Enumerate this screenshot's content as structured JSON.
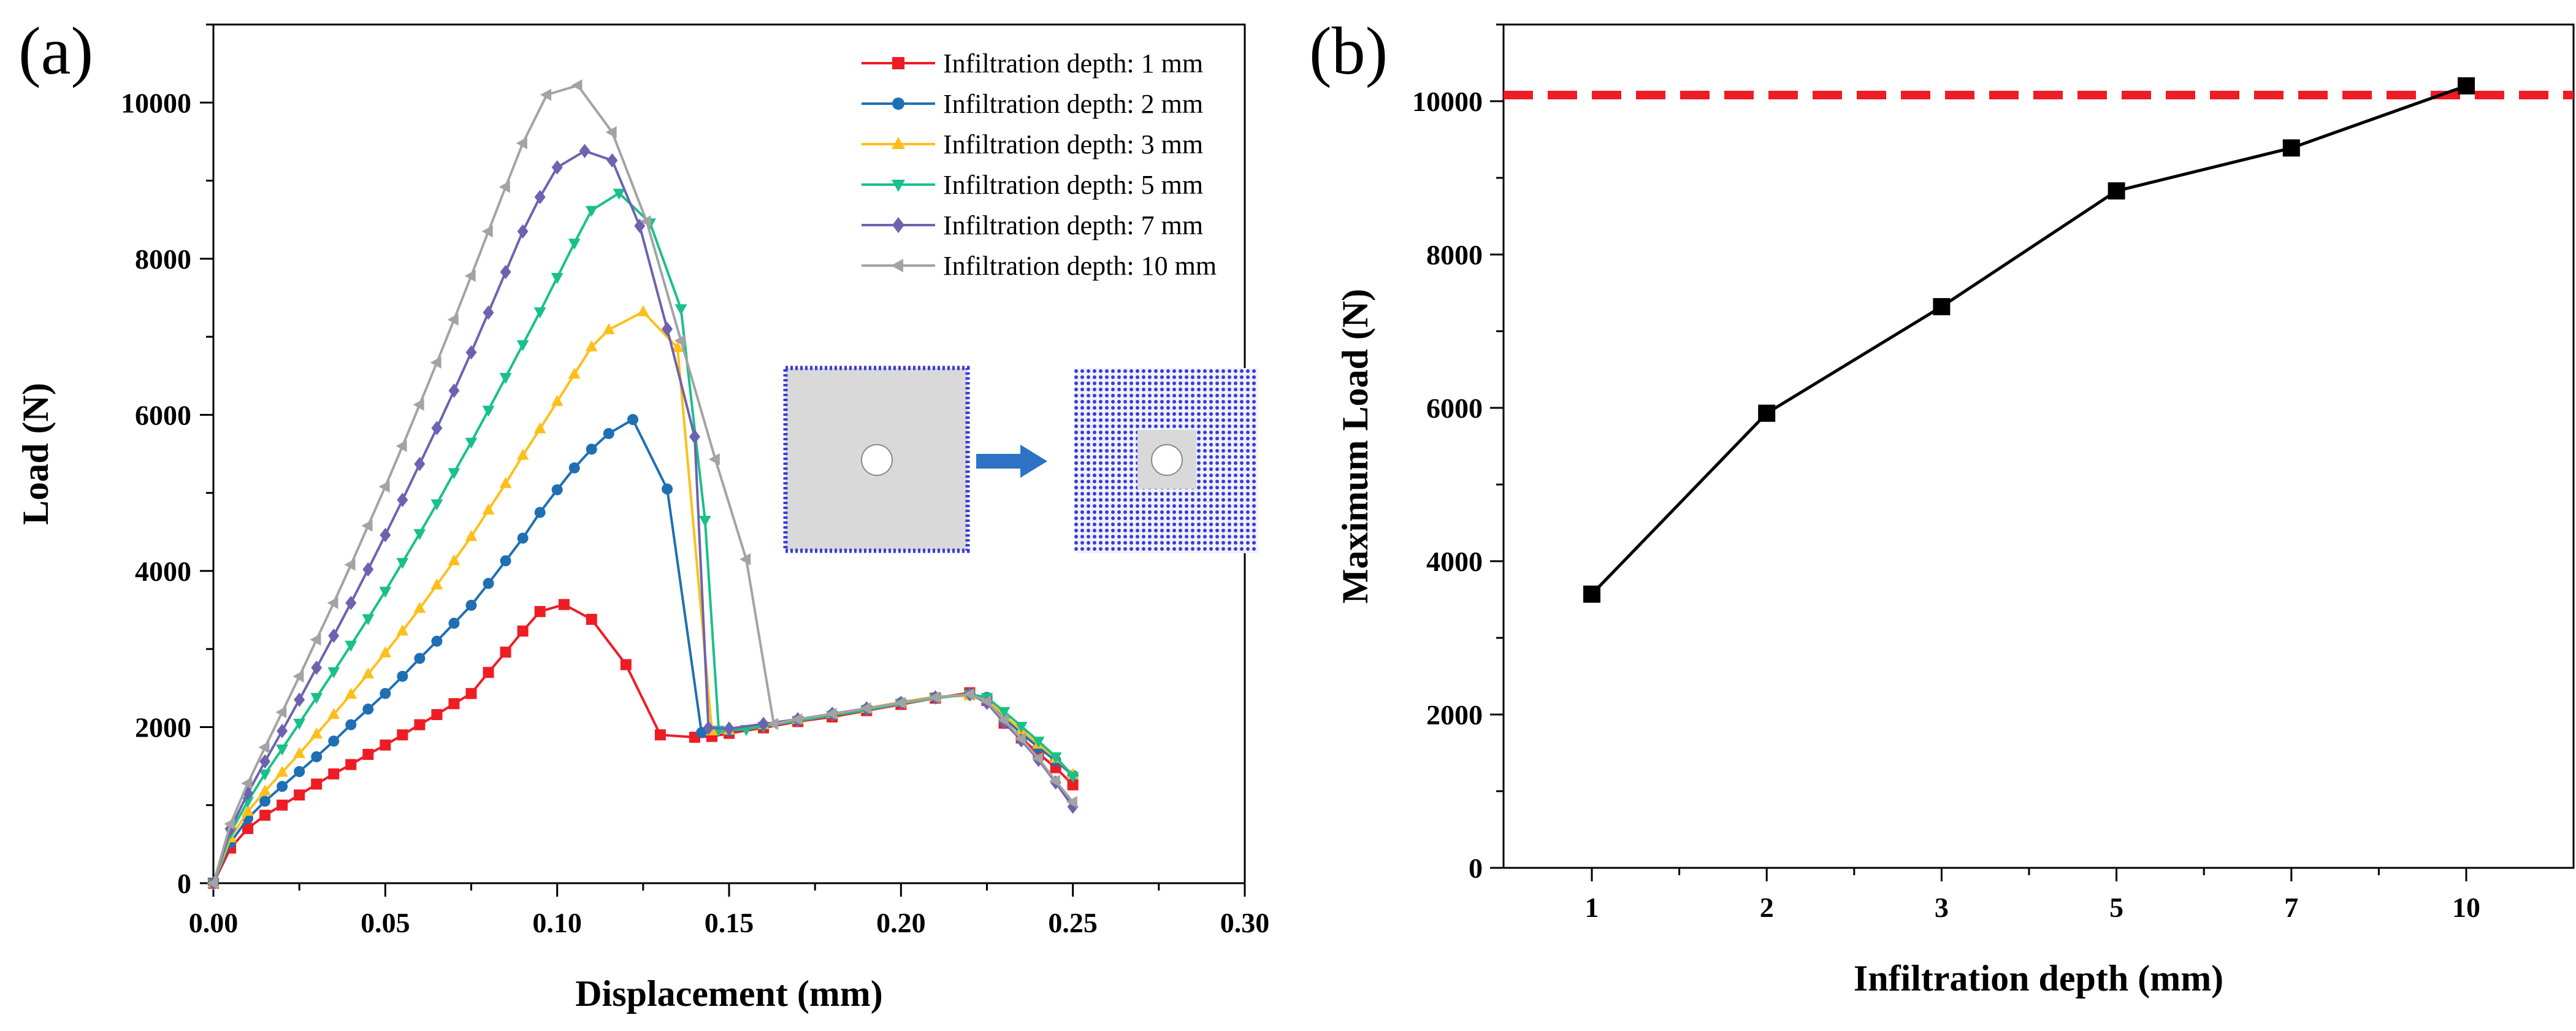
{
  "panel_labels": {
    "a": "(a)",
    "b": "(b)"
  },
  "colors": {
    "d1": "#ee1c25",
    "d2": "#1f6fb4",
    "d3": "#fdbf1b",
    "d5": "#19c08a",
    "d7": "#6c63b0",
    "d10": "#a3a3a3",
    "max_line": "#000000",
    "threshold": "#ee1c25",
    "inset_solid": "#d9d9d9",
    "inset_dots": "#3b3bd8",
    "arrow": "#2d72c4"
  },
  "inset": {
    "description_icon": "arrow-right-icon"
  },
  "chart_data": [
    {
      "type": "line",
      "title": "",
      "xlabel": "Displacement (mm)",
      "ylabel": "Load (N)",
      "xlim": [
        0,
        0.3
      ],
      "ylim": [
        0,
        11000
      ],
      "xticks": [
        "0.00",
        "0.05",
        "0.10",
        "0.15",
        "0.20",
        "0.25",
        "0.30"
      ],
      "xtick_values": [
        0,
        0.05,
        0.1,
        0.15,
        0.2,
        0.25,
        0.3
      ],
      "yticks": [
        "0",
        "2000",
        "4000",
        "6000",
        "8000",
        "10000"
      ],
      "ytick_values": [
        0,
        2000,
        4000,
        6000,
        8000,
        10000
      ],
      "grid": false,
      "legend_position": "top-right",
      "series": [
        {
          "name": "Infiltration depth: 1 mm",
          "color_key": "d1",
          "marker": "square",
          "points": [
            [
              0,
              0
            ],
            [
              0.005,
              450
            ],
            [
              0.01,
              700
            ],
            [
              0.015,
              870
            ],
            [
              0.02,
              1000
            ],
            [
              0.025,
              1130
            ],
            [
              0.03,
              1270
            ],
            [
              0.035,
              1400
            ],
            [
              0.04,
              1520
            ],
            [
              0.045,
              1650
            ],
            [
              0.05,
              1770
            ],
            [
              0.055,
              1900
            ],
            [
              0.06,
              2030
            ],
            [
              0.065,
              2160
            ],
            [
              0.07,
              2300
            ],
            [
              0.075,
              2430
            ],
            [
              0.08,
              2700
            ],
            [
              0.085,
              2960
            ],
            [
              0.09,
              3230
            ],
            [
              0.095,
              3480
            ],
            [
              0.102,
              3570
            ],
            [
              0.11,
              3380
            ],
            [
              0.12,
              2800
            ],
            [
              0.13,
              1900
            ],
            [
              0.14,
              1870
            ],
            [
              0.145,
              1880
            ],
            [
              0.15,
              1920
            ],
            [
              0.16,
              1990
            ],
            [
              0.17,
              2070
            ],
            [
              0.18,
              2130
            ],
            [
              0.19,
              2210
            ],
            [
              0.2,
              2290
            ],
            [
              0.21,
              2370
            ],
            [
              0.22,
              2440
            ],
            [
              0.225,
              2340
            ],
            [
              0.23,
              2050
            ],
            [
              0.235,
              1860
            ],
            [
              0.24,
              1660
            ],
            [
              0.245,
              1480
            ],
            [
              0.25,
              1260
            ]
          ]
        },
        {
          "name": "Infiltration depth: 2 mm",
          "color_key": "d2",
          "marker": "circle",
          "points": [
            [
              0,
              0
            ],
            [
              0.005,
              520
            ],
            [
              0.01,
              830
            ],
            [
              0.015,
              1050
            ],
            [
              0.02,
              1240
            ],
            [
              0.025,
              1430
            ],
            [
              0.03,
              1620
            ],
            [
              0.035,
              1820
            ],
            [
              0.04,
              2030
            ],
            [
              0.045,
              2230
            ],
            [
              0.05,
              2430
            ],
            [
              0.055,
              2650
            ],
            [
              0.06,
              2880
            ],
            [
              0.065,
              3100
            ],
            [
              0.07,
              3330
            ],
            [
              0.075,
              3560
            ],
            [
              0.08,
              3840
            ],
            [
              0.085,
              4130
            ],
            [
              0.09,
              4420
            ],
            [
              0.095,
              4750
            ],
            [
              0.1,
              5040
            ],
            [
              0.105,
              5320
            ],
            [
              0.11,
              5560
            ],
            [
              0.115,
              5760
            ],
            [
              0.122,
              5940
            ],
            [
              0.132,
              5050
            ],
            [
              0.142,
              1930
            ],
            [
              0.15,
              1950
            ],
            [
              0.16,
              2020
            ],
            [
              0.17,
              2090
            ],
            [
              0.18,
              2160
            ],
            [
              0.19,
              2230
            ],
            [
              0.2,
              2310
            ],
            [
              0.21,
              2380
            ],
            [
              0.22,
              2420
            ],
            [
              0.225,
              2380
            ],
            [
              0.23,
              2120
            ],
            [
              0.235,
              1920
            ],
            [
              0.24,
              1740
            ],
            [
              0.245,
              1570
            ],
            [
              0.25,
              1380
            ]
          ]
        },
        {
          "name": "Infiltration depth: 3 mm",
          "color_key": "d3",
          "marker": "triangle-up",
          "points": [
            [
              0,
              0
            ],
            [
              0.005,
              580
            ],
            [
              0.01,
              920
            ],
            [
              0.015,
              1180
            ],
            [
              0.02,
              1420
            ],
            [
              0.025,
              1660
            ],
            [
              0.03,
              1910
            ],
            [
              0.035,
              2160
            ],
            [
              0.04,
              2420
            ],
            [
              0.045,
              2680
            ],
            [
              0.05,
              2950
            ],
            [
              0.055,
              3230
            ],
            [
              0.06,
              3520
            ],
            [
              0.065,
              3820
            ],
            [
              0.07,
              4130
            ],
            [
              0.075,
              4440
            ],
            [
              0.08,
              4780
            ],
            [
              0.085,
              5120
            ],
            [
              0.09,
              5480
            ],
            [
              0.095,
              5820
            ],
            [
              0.1,
              6170
            ],
            [
              0.105,
              6520
            ],
            [
              0.11,
              6870
            ],
            [
              0.115,
              7090
            ],
            [
              0.125,
              7320
            ],
            [
              0.135,
              6860
            ],
            [
              0.145,
              1950
            ],
            [
              0.15,
              1960
            ],
            [
              0.16,
              2030
            ],
            [
              0.17,
              2100
            ],
            [
              0.18,
              2170
            ],
            [
              0.19,
              2240
            ],
            [
              0.2,
              2320
            ],
            [
              0.21,
              2390
            ],
            [
              0.22,
              2400
            ],
            [
              0.225,
              2360
            ],
            [
              0.23,
              2150
            ],
            [
              0.235,
              1960
            ],
            [
              0.24,
              1780
            ],
            [
              0.245,
              1600
            ],
            [
              0.25,
              1390
            ]
          ]
        },
        {
          "name": "Infiltration depth: 5 mm",
          "color_key": "d5",
          "marker": "triangle-down",
          "points": [
            [
              0,
              0
            ],
            [
              0.005,
              650
            ],
            [
              0.01,
              1050
            ],
            [
              0.015,
              1400
            ],
            [
              0.02,
              1720
            ],
            [
              0.025,
              2050
            ],
            [
              0.03,
              2380
            ],
            [
              0.035,
              2710
            ],
            [
              0.04,
              3050
            ],
            [
              0.045,
              3390
            ],
            [
              0.05,
              3740
            ],
            [
              0.055,
              4110
            ],
            [
              0.06,
              4480
            ],
            [
              0.065,
              4860
            ],
            [
              0.07,
              5260
            ],
            [
              0.075,
              5650
            ],
            [
              0.08,
              6060
            ],
            [
              0.085,
              6480
            ],
            [
              0.09,
              6900
            ],
            [
              0.095,
              7320
            ],
            [
              0.1,
              7760
            ],
            [
              0.105,
              8200
            ],
            [
              0.11,
              8620
            ],
            [
              0.118,
              8840
            ],
            [
              0.127,
              8460
            ],
            [
              0.136,
              7360
            ],
            [
              0.143,
              4650
            ],
            [
              0.147,
              1960
            ],
            [
              0.155,
              1970
            ],
            [
              0.16,
              2010
            ],
            [
              0.17,
              2080
            ],
            [
              0.18,
              2150
            ],
            [
              0.19,
              2220
            ],
            [
              0.2,
              2300
            ],
            [
              0.21,
              2370
            ],
            [
              0.22,
              2420
            ],
            [
              0.225,
              2380
            ],
            [
              0.23,
              2200
            ],
            [
              0.235,
              2010
            ],
            [
              0.24,
              1820
            ],
            [
              0.245,
              1620
            ],
            [
              0.25,
              1370
            ]
          ]
        },
        {
          "name": "Infiltration depth: 7 mm",
          "color_key": "d7",
          "marker": "diamond",
          "points": [
            [
              0,
              0
            ],
            [
              0.005,
              700
            ],
            [
              0.01,
              1150
            ],
            [
              0.015,
              1560
            ],
            [
              0.02,
              1950
            ],
            [
              0.025,
              2350
            ],
            [
              0.03,
              2760
            ],
            [
              0.035,
              3170
            ],
            [
              0.04,
              3590
            ],
            [
              0.045,
              4020
            ],
            [
              0.05,
              4460
            ],
            [
              0.055,
              4910
            ],
            [
              0.06,
              5370
            ],
            [
              0.065,
              5830
            ],
            [
              0.07,
              6310
            ],
            [
              0.075,
              6800
            ],
            [
              0.08,
              7310
            ],
            [
              0.085,
              7830
            ],
            [
              0.09,
              8350
            ],
            [
              0.095,
              8790
            ],
            [
              0.1,
              9170
            ],
            [
              0.108,
              9380
            ],
            [
              0.116,
              9260
            ],
            [
              0.124,
              8420
            ],
            [
              0.132,
              7100
            ],
            [
              0.14,
              5720
            ],
            [
              0.144,
              1990
            ],
            [
              0.15,
              1980
            ],
            [
              0.16,
              2040
            ],
            [
              0.17,
              2100
            ],
            [
              0.18,
              2170
            ],
            [
              0.19,
              2240
            ],
            [
              0.2,
              2310
            ],
            [
              0.21,
              2380
            ],
            [
              0.22,
              2420
            ],
            [
              0.225,
              2310
            ],
            [
              0.23,
              2060
            ],
            [
              0.235,
              1830
            ],
            [
              0.24,
              1580
            ],
            [
              0.245,
              1290
            ],
            [
              0.25,
              980
            ]
          ]
        },
        {
          "name": "Infiltration depth: 10 mm",
          "color_key": "d10",
          "marker": "triangle-left",
          "points": [
            [
              0,
              0
            ],
            [
              0.005,
              760
            ],
            [
              0.01,
              1280
            ],
            [
              0.015,
              1740
            ],
            [
              0.02,
              2190
            ],
            [
              0.025,
              2650
            ],
            [
              0.03,
              3120
            ],
            [
              0.035,
              3590
            ],
            [
              0.04,
              4080
            ],
            [
              0.045,
              4580
            ],
            [
              0.05,
              5080
            ],
            [
              0.055,
              5600
            ],
            [
              0.06,
              6130
            ],
            [
              0.065,
              6670
            ],
            [
              0.07,
              7220
            ],
            [
              0.075,
              7780
            ],
            [
              0.08,
              8350
            ],
            [
              0.085,
              8920
            ],
            [
              0.09,
              9480
            ],
            [
              0.097,
              10100
            ],
            [
              0.106,
              10220
            ],
            [
              0.116,
              9620
            ],
            [
              0.126,
              8480
            ],
            [
              0.136,
              6950
            ],
            [
              0.146,
              5430
            ],
            [
              0.155,
              4150
            ],
            [
              0.163,
              2040
            ],
            [
              0.17,
              2100
            ],
            [
              0.18,
              2170
            ],
            [
              0.19,
              2240
            ],
            [
              0.2,
              2310
            ],
            [
              0.21,
              2380
            ],
            [
              0.22,
              2420
            ],
            [
              0.225,
              2330
            ],
            [
              0.23,
              2090
            ],
            [
              0.235,
              1850
            ],
            [
              0.24,
              1600
            ],
            [
              0.245,
              1310
            ],
            [
              0.25,
              1040
            ]
          ]
        }
      ]
    },
    {
      "type": "line",
      "title": "",
      "xlabel": "Infiltration depth (mm)",
      "ylabel": "Maximum Load (N)",
      "categories": [
        "1",
        "2",
        "3",
        "5",
        "7",
        "10"
      ],
      "values": [
        3570,
        5930,
        7320,
        8830,
        9390,
        10200
      ],
      "ylim": [
        0,
        11000
      ],
      "yticks": [
        "0",
        "2000",
        "4000",
        "6000",
        "8000",
        "10000"
      ],
      "ytick_values": [
        0,
        2000,
        4000,
        6000,
        8000,
        10000
      ],
      "reference_line": 10080,
      "reference_style": "dashed",
      "grid": false,
      "marker": "square"
    }
  ]
}
